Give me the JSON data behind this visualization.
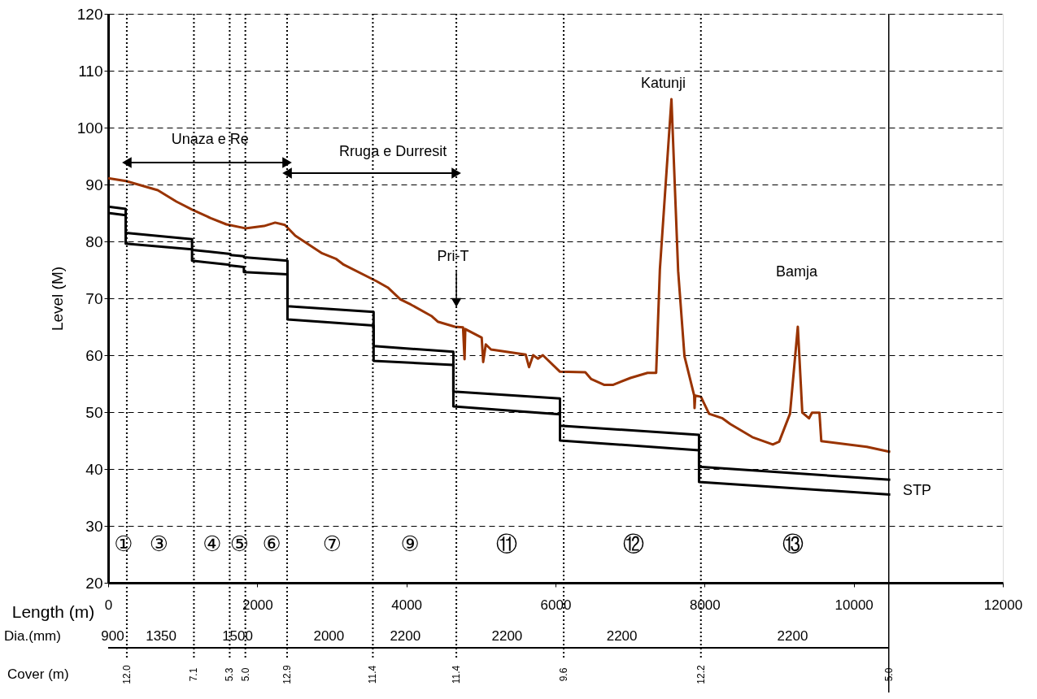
{
  "chart_data": {
    "type": "line",
    "xlabel": "Length (m)",
    "ylabel": "Level (M)",
    "xlim": [
      0,
      12000
    ],
    "xticks": [
      0,
      2000,
      4000,
      6000,
      8000,
      10000,
      12000
    ],
    "ylim": [
      20,
      120
    ],
    "yticks": [
      20,
      30,
      40,
      50,
      60,
      70,
      80,
      90,
      100,
      110,
      120
    ],
    "grid": "y",
    "line_style": "solid",
    "series": [
      {
        "color": "#993300",
        "x": [
          0,
          240,
          665,
          915,
          1125,
          1375,
          1585,
          1840,
          2090,
          2240,
          2370,
          2510,
          2870,
          3060,
          3160,
          3600,
          3750,
          3920,
          4060,
          4335,
          4420,
          4650,
          4760,
          4780,
          4790,
          5010,
          5030,
          5065,
          5135,
          5600,
          5645,
          5700,
          5765,
          5830,
          6060,
          6400,
          6480,
          6650,
          6775,
          7005,
          7235,
          7350,
          7400,
          7555,
          7645,
          7730,
          7860,
          7865,
          7875,
          7950,
          8060,
          8240,
          8345,
          8640,
          8915,
          9000,
          9145,
          9250,
          9310,
          9400,
          9440,
          9540,
          9565,
          10175,
          10490
        ],
        "values": [
          91.1,
          90.6,
          89.0,
          87.0,
          85.6,
          84.1,
          83.0,
          82.3,
          82.7,
          83.3,
          82.9,
          81.0,
          77.9,
          76.9,
          75.9,
          73.0,
          71.9,
          69.8,
          68.9,
          66.9,
          65.9,
          65.0,
          64.9,
          59.3,
          64.6,
          63.1,
          58.8,
          61.9,
          61.0,
          60.1,
          57.9,
          60.0,
          59.4,
          60.0,
          57.1,
          57.0,
          55.8,
          54.8,
          54.8,
          56.0,
          56.9,
          56.9,
          75.1,
          105.0,
          74.8,
          59.8,
          52.9,
          50.7,
          52.9,
          52.7,
          49.7,
          48.9,
          47.9,
          45.6,
          44.3,
          44.8,
          49.7,
          65.0,
          49.9,
          48.9,
          49.9,
          49.9,
          44.9,
          43.9,
          43.0
        ]
      },
      {
        "color": "#000000",
        "x": [
          0,
          235,
          235,
          1125,
          1125,
          1640,
          1640,
          1820,
          1820,
          2405,
          2405,
          3560,
          3560,
          4630,
          4630,
          6060,
          6060,
          7925,
          7925,
          10490
        ],
        "values": [
          86.1,
          85.7,
          81.5,
          80.4,
          78.5,
          77.8,
          77.6,
          77.4,
          77.2,
          76.6,
          68.6,
          67.6,
          61.6,
          60.6,
          53.6,
          52.4,
          47.6,
          46.0,
          40.4,
          38.1
        ]
      },
      {
        "color": "#000000",
        "x": [
          0,
          235,
          235,
          1125,
          1125,
          1625,
          1625,
          1820,
          1820,
          2405,
          2405,
          3560,
          3560,
          4630,
          4630,
          6060,
          6060,
          7925,
          7925,
          10490
        ],
        "values": [
          85.0,
          84.6,
          79.6,
          78.6,
          76.6,
          75.9,
          75.8,
          75.5,
          74.6,
          74.2,
          66.3,
          65.2,
          59.0,
          58.3,
          51.0,
          49.6,
          45.0,
          43.3,
          37.7,
          35.5
        ]
      }
    ],
    "ref_lines": [
      {
        "axis": "x",
        "value": 250,
        "line_style": "dotted",
        "color": "#000000"
      },
      {
        "axis": "x",
        "value": 1150,
        "line_style": "dotted",
        "color": "#000000"
      },
      {
        "axis": "x",
        "value": 1630,
        "line_style": "dotted",
        "color": "#000000"
      },
      {
        "axis": "x",
        "value": 1840,
        "line_style": "dotted",
        "color": "#000000"
      },
      {
        "axis": "x",
        "value": 2400,
        "line_style": "dotted",
        "color": "#000000"
      },
      {
        "axis": "x",
        "value": 3550,
        "line_style": "dotted",
        "color": "#000000"
      },
      {
        "axis": "x",
        "value": 4670,
        "line_style": "dotted",
        "color": "#000000"
      },
      {
        "axis": "x",
        "value": 6110,
        "line_style": "dotted",
        "color": "#000000"
      },
      {
        "axis": "x",
        "value": 7950,
        "line_style": "dotted",
        "color": "#000000"
      },
      {
        "axis": "x",
        "value": 10470,
        "line_style": "solid",
        "color": "#000000"
      }
    ],
    "annotations": [
      "Unaza e Re",
      "Rruga e Durresit",
      {
        "text": "Pri-T",
        "x": 4670,
        "y": 68.4
      },
      "Katunji",
      "Bamja",
      "STP",
      "①",
      "③",
      "④",
      "⑤",
      "⑥",
      "⑦",
      "⑨",
      "⑪",
      "⑫",
      "⑬",
      "Dia.(mm)",
      "Cover (m)",
      "900",
      "1350",
      "1500",
      "2000",
      "2200",
      "2200",
      "2200",
      "2200",
      "12.0",
      "7.1",
      "5.3",
      "5.0",
      "12.9",
      "11.4",
      "11.4",
      "9.6",
      "12.2",
      "5.0"
    ]
  }
}
